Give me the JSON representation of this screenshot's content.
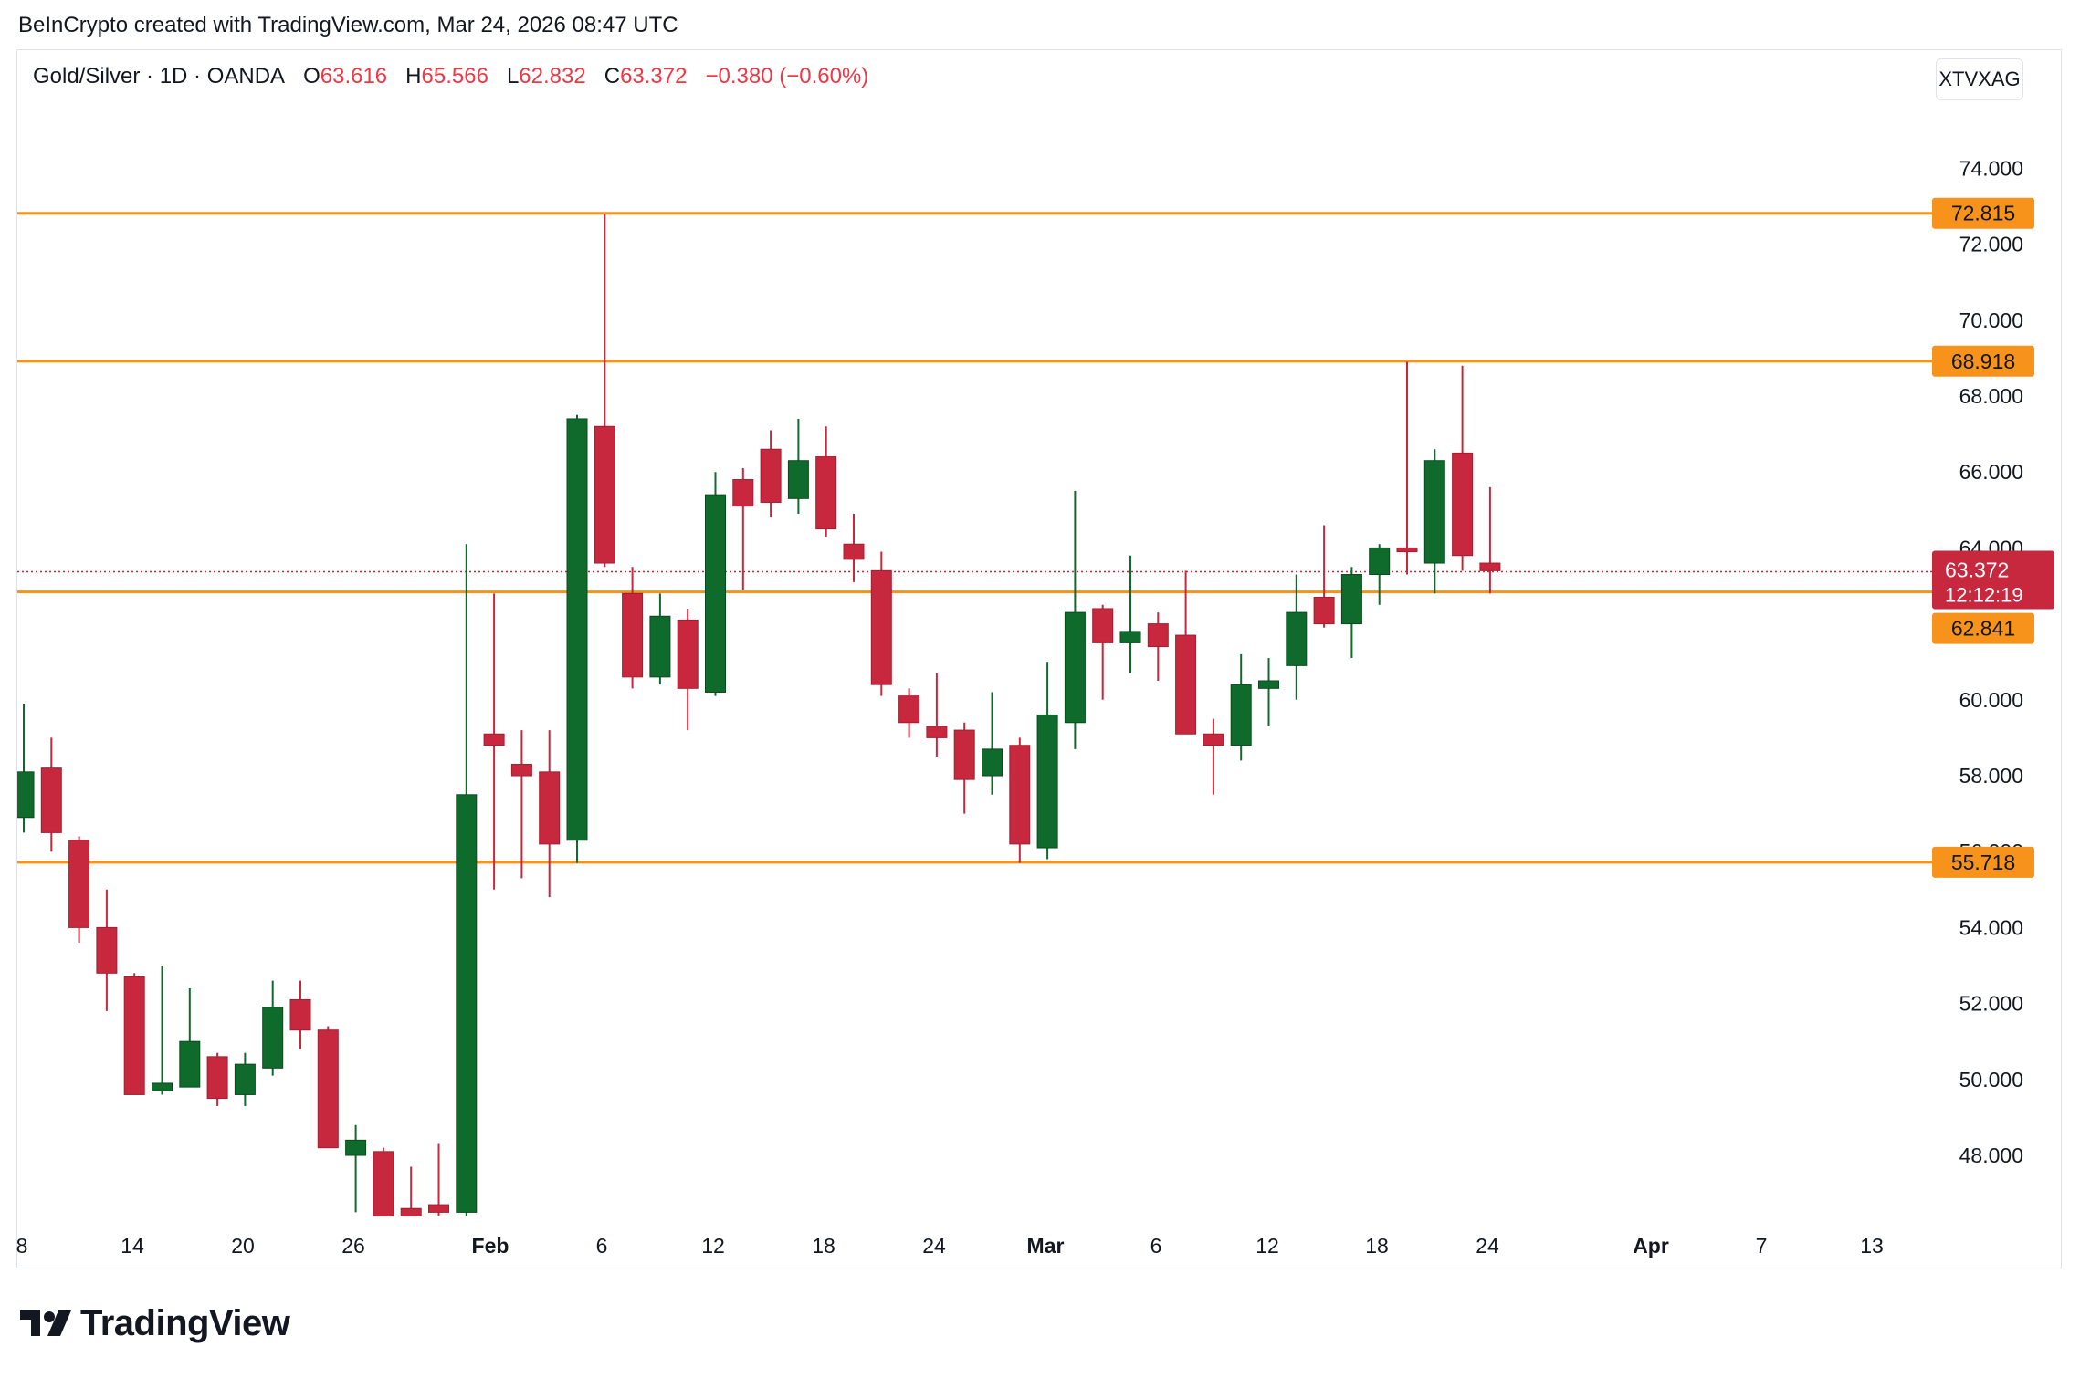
{
  "credit": "BeInCrypto created with TradingView.com, Mar 24, 2026 08:47 UTC",
  "legend": {
    "symbol": "Gold/Silver · 1D · OANDA",
    "o_label": "O",
    "o_value": "63.616",
    "h_label": "H",
    "h_value": "65.566",
    "l_label": "L",
    "l_value": "62.832",
    "c_label": "C",
    "c_value": "63.372",
    "change": "−0.380 (−0.60%)"
  },
  "symbol_button": "XTVXAG",
  "brand": "TradingView",
  "colors": {
    "up": "#0f6b2c",
    "down": "#c7283d",
    "level": "#f7931a",
    "price_label": "#c7283d",
    "axis_text": "#131722"
  },
  "chart_data": {
    "type": "candlestick",
    "y_ticks": [
      "74.000",
      "72.000",
      "70.000",
      "68.000",
      "66.000",
      "64.000",
      "60.000",
      "58.000",
      "56.000",
      "54.000",
      "52.000",
      "50.000",
      "48.000"
    ],
    "x_ticks": [
      "8",
      "14",
      "20",
      "26",
      "Feb",
      "6",
      "12",
      "18",
      "24",
      "Mar",
      "6",
      "12",
      "18",
      "24",
      "Apr",
      "7",
      "13"
    ],
    "horizontal_levels": [
      {
        "value": 72.815,
        "label": "72.815"
      },
      {
        "value": 68.918,
        "label": "68.918"
      },
      {
        "value": 62.841,
        "label": "62.841"
      },
      {
        "value": 55.718,
        "label": "55.718"
      }
    ],
    "last_price": {
      "value": 63.372,
      "label": "63.372",
      "countdown": "12:12:19"
    },
    "candles": [
      {
        "o": 56.9,
        "h": 59.9,
        "l": 56.5,
        "c": 58.1
      },
      {
        "o": 58.2,
        "h": 59.0,
        "l": 56.0,
        "c": 56.5
      },
      {
        "o": 56.3,
        "h": 56.4,
        "l": 53.6,
        "c": 54.0
      },
      {
        "o": 54.0,
        "h": 55.0,
        "l": 51.8,
        "c": 52.8
      },
      {
        "o": 52.7,
        "h": 52.8,
        "l": 49.6,
        "c": 49.6
      },
      {
        "o": 49.7,
        "h": 53.0,
        "l": 49.6,
        "c": 49.9
      },
      {
        "o": 49.8,
        "h": 52.4,
        "l": 49.8,
        "c": 51.0
      },
      {
        "o": 50.6,
        "h": 50.7,
        "l": 49.3,
        "c": 49.5
      },
      {
        "o": 49.6,
        "h": 50.7,
        "l": 49.3,
        "c": 50.4
      },
      {
        "o": 50.3,
        "h": 52.6,
        "l": 50.1,
        "c": 51.9
      },
      {
        "o": 52.1,
        "h": 52.6,
        "l": 50.8,
        "c": 51.3
      },
      {
        "o": 51.3,
        "h": 51.4,
        "l": 48.2,
        "c": 48.2
      },
      {
        "o": 48.0,
        "h": 48.8,
        "l": 46.5,
        "c": 48.4
      },
      {
        "o": 48.1,
        "h": 48.2,
        "l": 46.4,
        "c": 46.4
      },
      {
        "o": 46.6,
        "h": 47.7,
        "l": 46.4,
        "c": 46.4
      },
      {
        "o": 46.7,
        "h": 48.3,
        "l": 46.4,
        "c": 46.5
      },
      {
        "o": 46.5,
        "h": 64.1,
        "l": 46.4,
        "c": 57.5
      },
      {
        "o": 59.1,
        "h": 62.8,
        "l": 55.0,
        "c": 58.8
      },
      {
        "o": 58.3,
        "h": 59.2,
        "l": 55.3,
        "c": 58.0
      },
      {
        "o": 58.1,
        "h": 59.2,
        "l": 54.8,
        "c": 56.2
      },
      {
        "o": 56.3,
        "h": 67.5,
        "l": 55.7,
        "c": 67.4
      },
      {
        "o": 67.2,
        "h": 72.8,
        "l": 63.5,
        "c": 63.6
      },
      {
        "o": 62.8,
        "h": 63.5,
        "l": 60.3,
        "c": 60.6
      },
      {
        "o": 60.6,
        "h": 62.8,
        "l": 60.4,
        "c": 62.2
      },
      {
        "o": 62.1,
        "h": 62.4,
        "l": 59.2,
        "c": 60.3
      },
      {
        "o": 60.2,
        "h": 66.0,
        "l": 60.1,
        "c": 65.4
      },
      {
        "o": 65.8,
        "h": 66.1,
        "l": 62.9,
        "c": 65.1
      },
      {
        "o": 66.6,
        "h": 67.1,
        "l": 64.8,
        "c": 65.2
      },
      {
        "o": 65.3,
        "h": 67.4,
        "l": 64.9,
        "c": 66.3
      },
      {
        "o": 66.4,
        "h": 67.2,
        "l": 64.3,
        "c": 64.5
      },
      {
        "o": 64.1,
        "h": 64.9,
        "l": 63.1,
        "c": 63.7
      },
      {
        "o": 63.4,
        "h": 63.9,
        "l": 60.1,
        "c": 60.4
      },
      {
        "o": 60.1,
        "h": 60.3,
        "l": 59.0,
        "c": 59.4
      },
      {
        "o": 59.3,
        "h": 60.7,
        "l": 58.5,
        "c": 59.0
      },
      {
        "o": 59.2,
        "h": 59.4,
        "l": 57.0,
        "c": 57.9
      },
      {
        "o": 58.0,
        "h": 60.2,
        "l": 57.5,
        "c": 58.7
      },
      {
        "o": 58.8,
        "h": 59.0,
        "l": 55.7,
        "c": 56.2
      },
      {
        "o": 56.1,
        "h": 61.0,
        "l": 55.8,
        "c": 59.6
      },
      {
        "o": 59.4,
        "h": 65.5,
        "l": 58.7,
        "c": 62.3
      },
      {
        "o": 62.4,
        "h": 62.5,
        "l": 60.0,
        "c": 61.5
      },
      {
        "o": 61.5,
        "h": 63.8,
        "l": 60.7,
        "c": 61.8
      },
      {
        "o": 62.0,
        "h": 62.3,
        "l": 60.5,
        "c": 61.4
      },
      {
        "o": 61.7,
        "h": 63.4,
        "l": 59.1,
        "c": 59.1
      },
      {
        "o": 59.1,
        "h": 59.5,
        "l": 57.5,
        "c": 58.8
      },
      {
        "o": 58.8,
        "h": 61.2,
        "l": 58.4,
        "c": 60.4
      },
      {
        "o": 60.3,
        "h": 61.1,
        "l": 59.3,
        "c": 60.5
      },
      {
        "o": 60.9,
        "h": 63.3,
        "l": 60.0,
        "c": 62.3
      },
      {
        "o": 62.7,
        "h": 64.6,
        "l": 61.9,
        "c": 62.0
      },
      {
        "o": 62.0,
        "h": 63.5,
        "l": 61.1,
        "c": 63.3
      },
      {
        "o": 63.3,
        "h": 64.1,
        "l": 62.5,
        "c": 64.0
      },
      {
        "o": 64.0,
        "h": 68.9,
        "l": 63.3,
        "c": 63.9
      },
      {
        "o": 63.6,
        "h": 66.6,
        "l": 62.8,
        "c": 66.3
      },
      {
        "o": 66.5,
        "h": 68.8,
        "l": 63.4,
        "c": 63.8
      },
      {
        "o": 63.6,
        "h": 65.6,
        "l": 62.8,
        "c": 63.4
      }
    ]
  }
}
